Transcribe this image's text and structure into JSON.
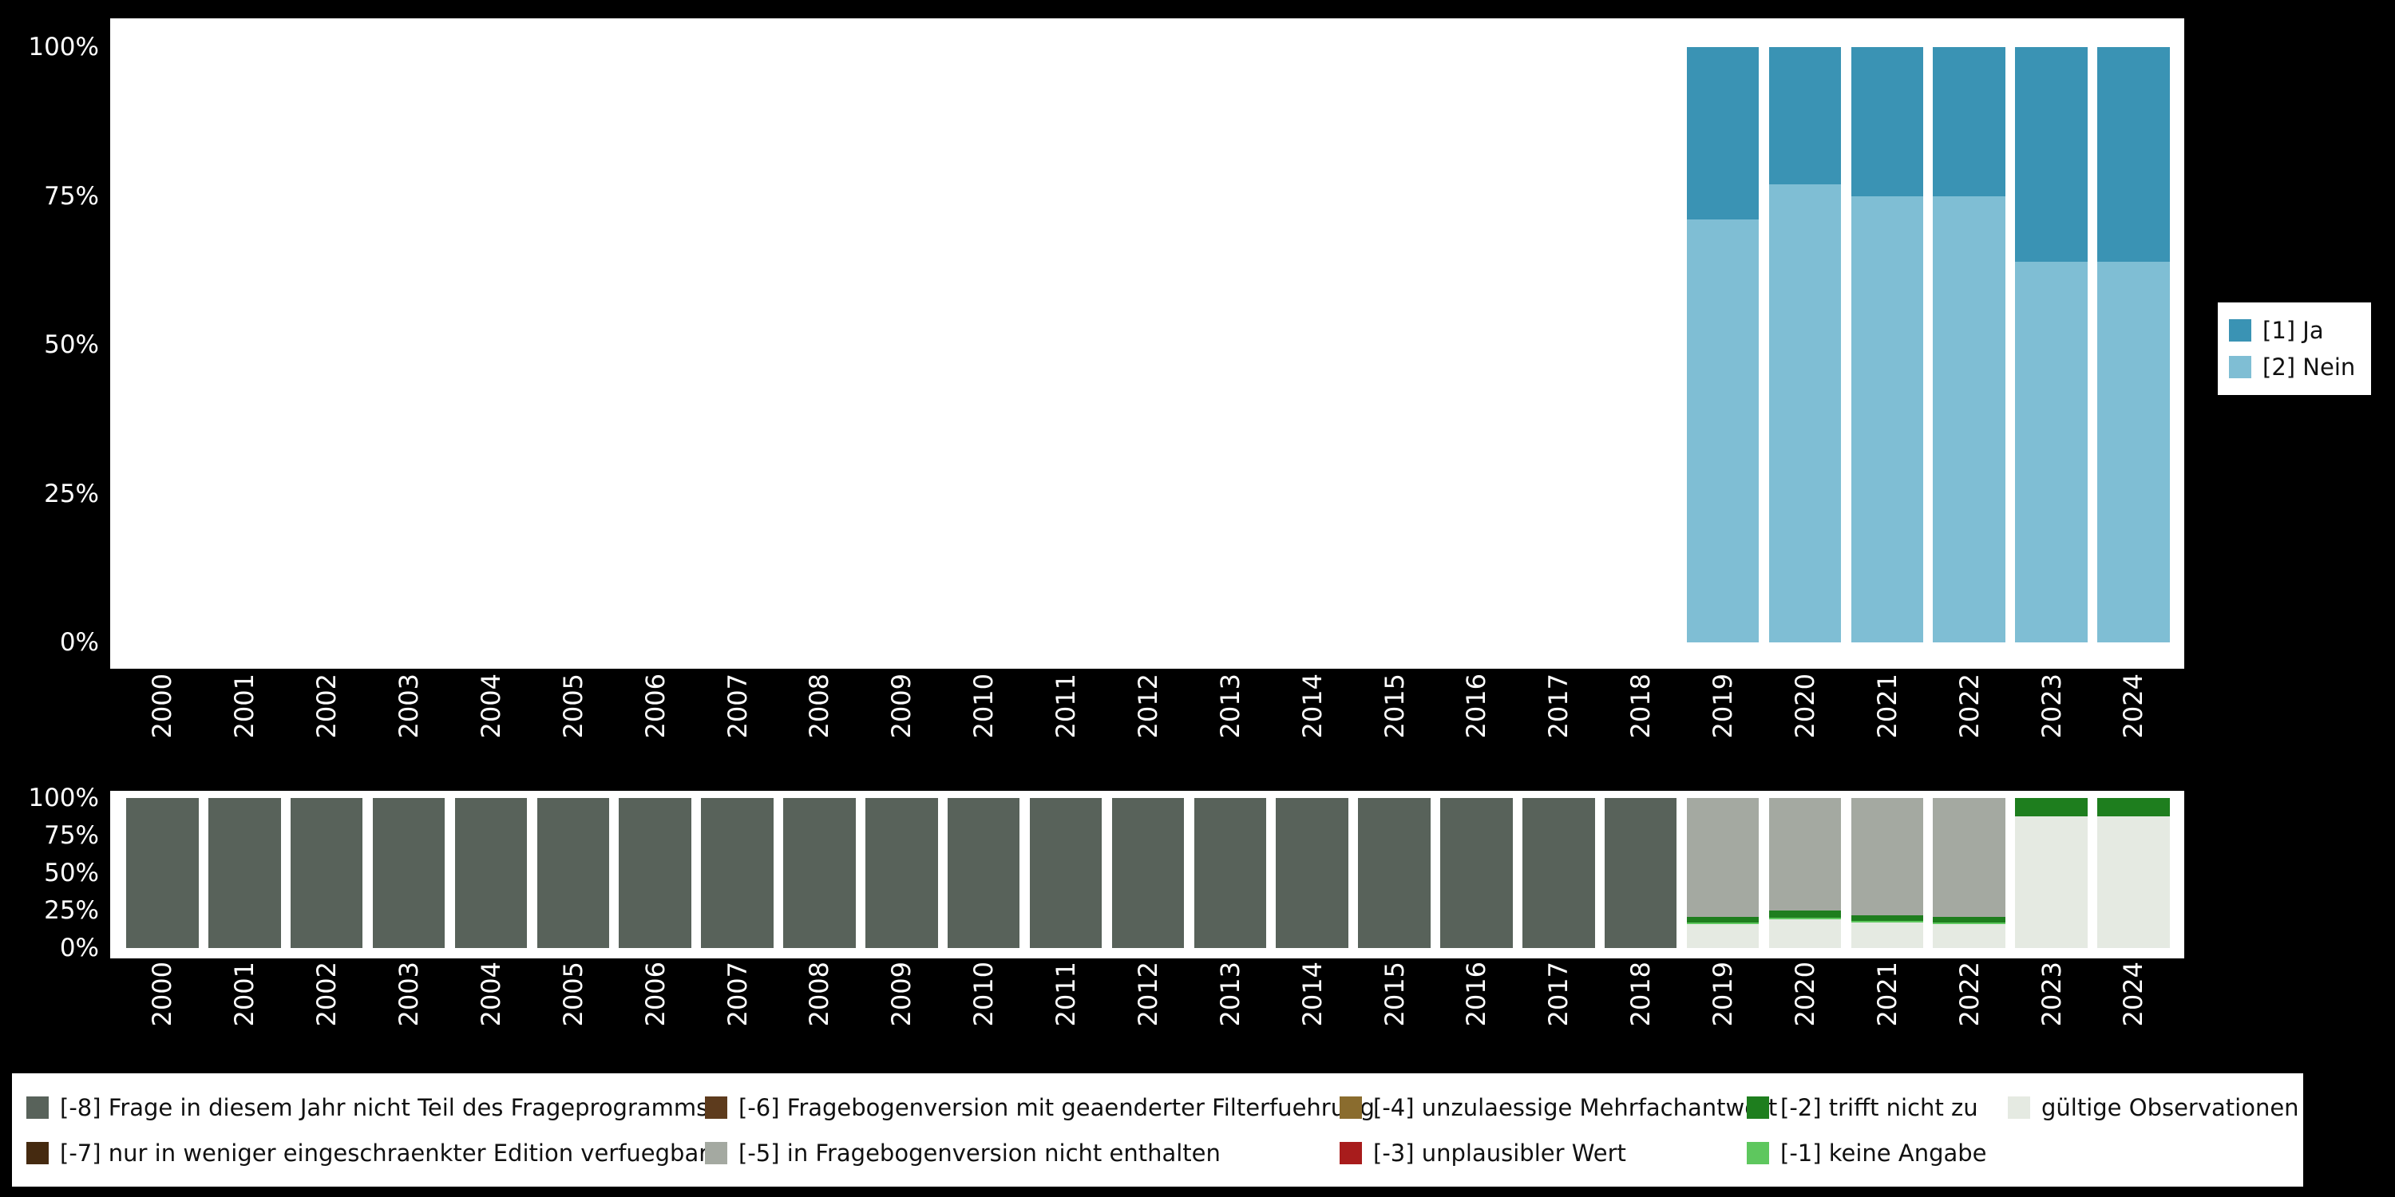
{
  "colors": {
    "page_background": "#000000",
    "plot_background": "#ffffff",
    "axis_text": "#ffffff",
    "legend_text": "#111111"
  },
  "chart_data": [
    {
      "id": "response-distribution",
      "type": "bar",
      "stacked": true,
      "unit": "percent",
      "title": "",
      "xlabel": "",
      "ylabel": "",
      "ylim": [
        0,
        100
      ],
      "yticks": [
        100,
        75,
        50,
        25,
        0
      ],
      "grid": false,
      "categories": [
        "2000",
        "2001",
        "2002",
        "2003",
        "2004",
        "2005",
        "2006",
        "2007",
        "2008",
        "2009",
        "2010",
        "2011",
        "2012",
        "2013",
        "2014",
        "2015",
        "2016",
        "2017",
        "2018",
        "2019",
        "2020",
        "2021",
        "2022",
        "2023",
        "2024"
      ],
      "series": [
        {
          "name": "[2] Nein",
          "color": "#7fbed4",
          "values": [
            null,
            null,
            null,
            null,
            null,
            null,
            null,
            null,
            null,
            null,
            null,
            null,
            null,
            null,
            null,
            null,
            null,
            null,
            null,
            71,
            77,
            75,
            75,
            64,
            64
          ]
        },
        {
          "name": "[1] Ja",
          "color": "#3a93b4",
          "values": [
            null,
            null,
            null,
            null,
            null,
            null,
            null,
            null,
            null,
            null,
            null,
            null,
            null,
            null,
            null,
            null,
            null,
            null,
            null,
            29,
            23,
            25,
            25,
            36,
            36
          ]
        }
      ],
      "legend": {
        "position": "right",
        "items": [
          {
            "label": "[1] Ja",
            "color": "#3a93b4"
          },
          {
            "label": "[2] Nein",
            "color": "#7fbed4"
          }
        ]
      }
    },
    {
      "id": "missings-overview",
      "type": "bar",
      "stacked": true,
      "unit": "percent",
      "title": "",
      "xlabel": "",
      "ylabel": "",
      "ylim": [
        0,
        100
      ],
      "yticks": [
        100,
        75,
        50,
        25,
        0
      ],
      "grid": false,
      "categories": [
        "2000",
        "2001",
        "2002",
        "2003",
        "2004",
        "2005",
        "2006",
        "2007",
        "2008",
        "2009",
        "2010",
        "2011",
        "2012",
        "2013",
        "2014",
        "2015",
        "2016",
        "2017",
        "2018",
        "2019",
        "2020",
        "2021",
        "2022",
        "2023",
        "2024"
      ],
      "series": [
        {
          "name": "gültige Observationen",
          "color": "#e5eae2",
          "values": [
            0,
            0,
            0,
            0,
            0,
            0,
            0,
            0,
            0,
            0,
            0,
            0,
            0,
            0,
            0,
            0,
            0,
            0,
            0,
            16,
            19,
            17,
            16,
            88,
            88
          ]
        },
        {
          "name": "[-1] keine Angabe",
          "color": "#5ec75e",
          "values": [
            0,
            0,
            0,
            0,
            0,
            0,
            0,
            0,
            0,
            0,
            0,
            0,
            0,
            0,
            0,
            0,
            0,
            0,
            0,
            1,
            1,
            1,
            1,
            0,
            0
          ]
        },
        {
          "name": "[-2] trifft nicht zu",
          "color": "#1e7e1e",
          "values": [
            0,
            0,
            0,
            0,
            0,
            0,
            0,
            0,
            0,
            0,
            0,
            0,
            0,
            0,
            0,
            0,
            0,
            0,
            0,
            4,
            5,
            4,
            4,
            12,
            12
          ]
        },
        {
          "name": "[-3] unplausibler Wert",
          "color": "#a81c1c",
          "values": [
            0,
            0,
            0,
            0,
            0,
            0,
            0,
            0,
            0,
            0,
            0,
            0,
            0,
            0,
            0,
            0,
            0,
            0,
            0,
            0,
            0,
            0,
            0,
            0,
            0
          ]
        },
        {
          "name": "[-4] unzulaessige Mehrfachantwort",
          "color": "#8a6c2e",
          "values": [
            0,
            0,
            0,
            0,
            0,
            0,
            0,
            0,
            0,
            0,
            0,
            0,
            0,
            0,
            0,
            0,
            0,
            0,
            0,
            0,
            0,
            0,
            0,
            0,
            0
          ]
        },
        {
          "name": "[-5] in Fragebogenversion nicht enthalten",
          "color": "#a4a9a1",
          "values": [
            0,
            0,
            0,
            0,
            0,
            0,
            0,
            0,
            0,
            0,
            0,
            0,
            0,
            0,
            0,
            0,
            0,
            0,
            0,
            79,
            75,
            78,
            79,
            0,
            0
          ]
        },
        {
          "name": "[-6] Fragebogenversion mit geaenderter Filterfuehrung",
          "color": "#5d3b1d",
          "values": [
            0,
            0,
            0,
            0,
            0,
            0,
            0,
            0,
            0,
            0,
            0,
            0,
            0,
            0,
            0,
            0,
            0,
            0,
            0,
            0,
            0,
            0,
            0,
            0,
            0
          ]
        },
        {
          "name": "[-7] nur in weniger eingeschraenkter Edition verfuegbar",
          "color": "#452a10",
          "values": [
            0,
            0,
            0,
            0,
            0,
            0,
            0,
            0,
            0,
            0,
            0,
            0,
            0,
            0,
            0,
            0,
            0,
            0,
            0,
            0,
            0,
            0,
            0,
            0,
            0
          ]
        },
        {
          "name": "[-8] Frage in diesem Jahr nicht Teil des Frageprogramms",
          "color": "#58625a",
          "values": [
            100,
            100,
            100,
            100,
            100,
            100,
            100,
            100,
            100,
            100,
            100,
            100,
            100,
            100,
            100,
            100,
            100,
            100,
            100,
            0,
            0,
            0,
            0,
            0,
            0
          ]
        }
      ],
      "legend": {
        "position": "bottom",
        "items": [
          {
            "label": "[-8] Frage in diesem Jahr nicht Teil des Frageprogramms",
            "color": "#58625a"
          },
          {
            "label": "[-6] Fragebogenversion mit geaenderter Filterfuehrung",
            "color": "#5d3b1d"
          },
          {
            "label": "[-4] unzulaessige Mehrfachantwort",
            "color": "#8a6c2e"
          },
          {
            "label": "[-2] trifft nicht zu",
            "color": "#1e7e1e"
          },
          {
            "label": "gültige Observationen",
            "color": "#e5eae2"
          },
          {
            "label": "[-7] nur in weniger eingeschraenkter Edition verfuegbar",
            "color": "#452a10"
          },
          {
            "label": "[-5] in Fragebogenversion nicht enthalten",
            "color": "#a4a9a1"
          },
          {
            "label": "[-3] unplausibler Wert",
            "color": "#a81c1c"
          },
          {
            "label": "[-1] keine Angabe",
            "color": "#5ec75e"
          }
        ]
      }
    }
  ]
}
